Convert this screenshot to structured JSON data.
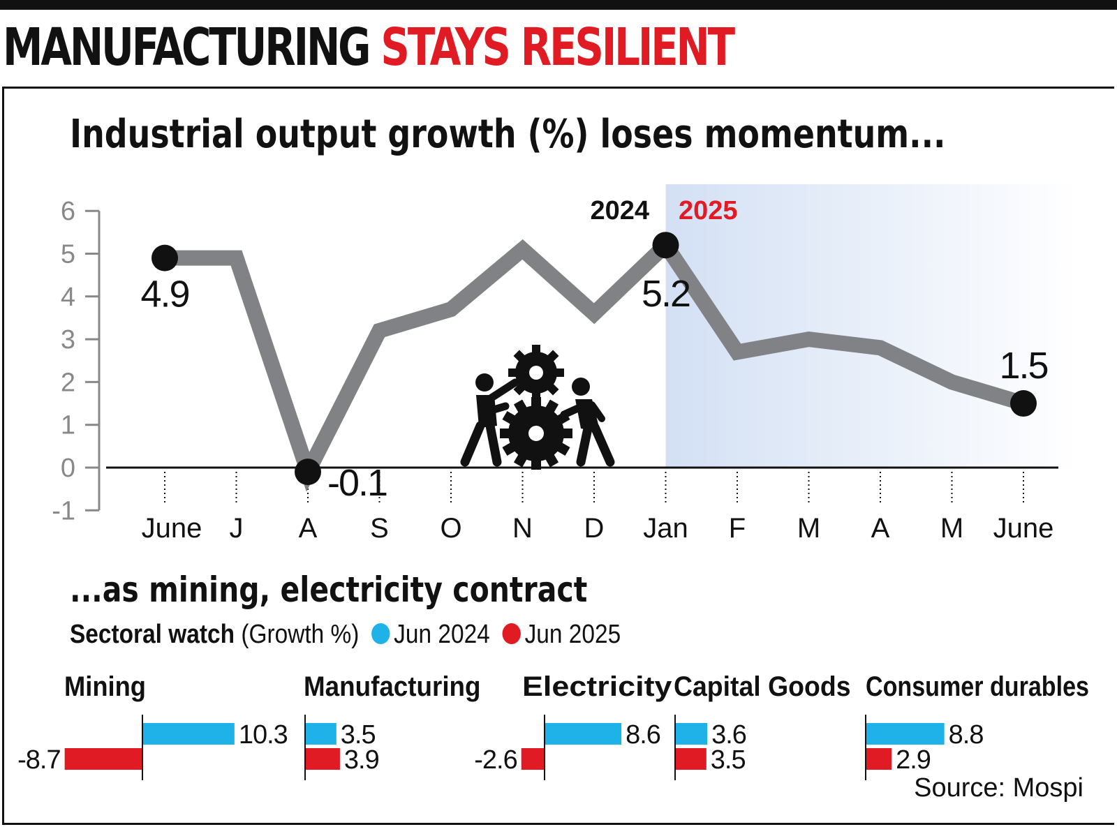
{
  "headline": {
    "part1": "MANUFACTURING",
    "part2": "STAYS RESILIENT"
  },
  "colors": {
    "accent_red": "#e11b24",
    "blue": "#1fb2e8",
    "line_grey": "#808285",
    "shade": "#dbe6f6"
  },
  "icon": "workers-with-gears-icon",
  "chart_data": [
    {
      "type": "line",
      "title": "Industrial output growth (%) loses momentum...",
      "categories": [
        "June",
        "J",
        "A",
        "S",
        "O",
        "N",
        "D",
        "Jan",
        "F",
        "M",
        "A",
        "M",
        "June"
      ],
      "values": [
        4.9,
        4.9,
        -0.1,
        3.2,
        3.7,
        5.1,
        3.6,
        5.2,
        2.7,
        3.0,
        2.8,
        2.0,
        1.5
      ],
      "ylim": [
        -1,
        6
      ],
      "yticks": [
        "-1",
        "0",
        "1",
        "2",
        "3",
        "4",
        "5",
        "6"
      ],
      "year_labels": {
        "left": "2024",
        "right": "2025"
      },
      "point_labels": [
        {
          "index": 0,
          "text": "4.9"
        },
        {
          "index": 2,
          "text": "-0.1"
        },
        {
          "index": 7,
          "text": "5.2"
        },
        {
          "index": 12,
          "text": "1.5"
        }
      ]
    },
    {
      "type": "bar",
      "title": "...as mining, electricity contract",
      "legend_title": "Sectoral watch",
      "legend_sub": "(Growth %)",
      "series": [
        {
          "name": "Jun 2024",
          "color": "#1fb2e8",
          "values": [
            10.3,
            3.5,
            8.6,
            3.6,
            8.8
          ],
          "labels": [
            "10.3",
            "3.5",
            "8.6",
            "3.6",
            "8.8"
          ]
        },
        {
          "name": "Jun 2025",
          "color": "#e11b24",
          "values": [
            -8.7,
            3.9,
            -2.6,
            3.5,
            2.9
          ],
          "labels": [
            "-8.7",
            "3.9",
            "-2.6",
            "3.5",
            "2.9"
          ]
        }
      ],
      "categories": [
        "Mining",
        "Manufacturing",
        "Electricity",
        "Capital Goods",
        "Consumer durables"
      ]
    }
  ],
  "source": "Source: Mospi"
}
